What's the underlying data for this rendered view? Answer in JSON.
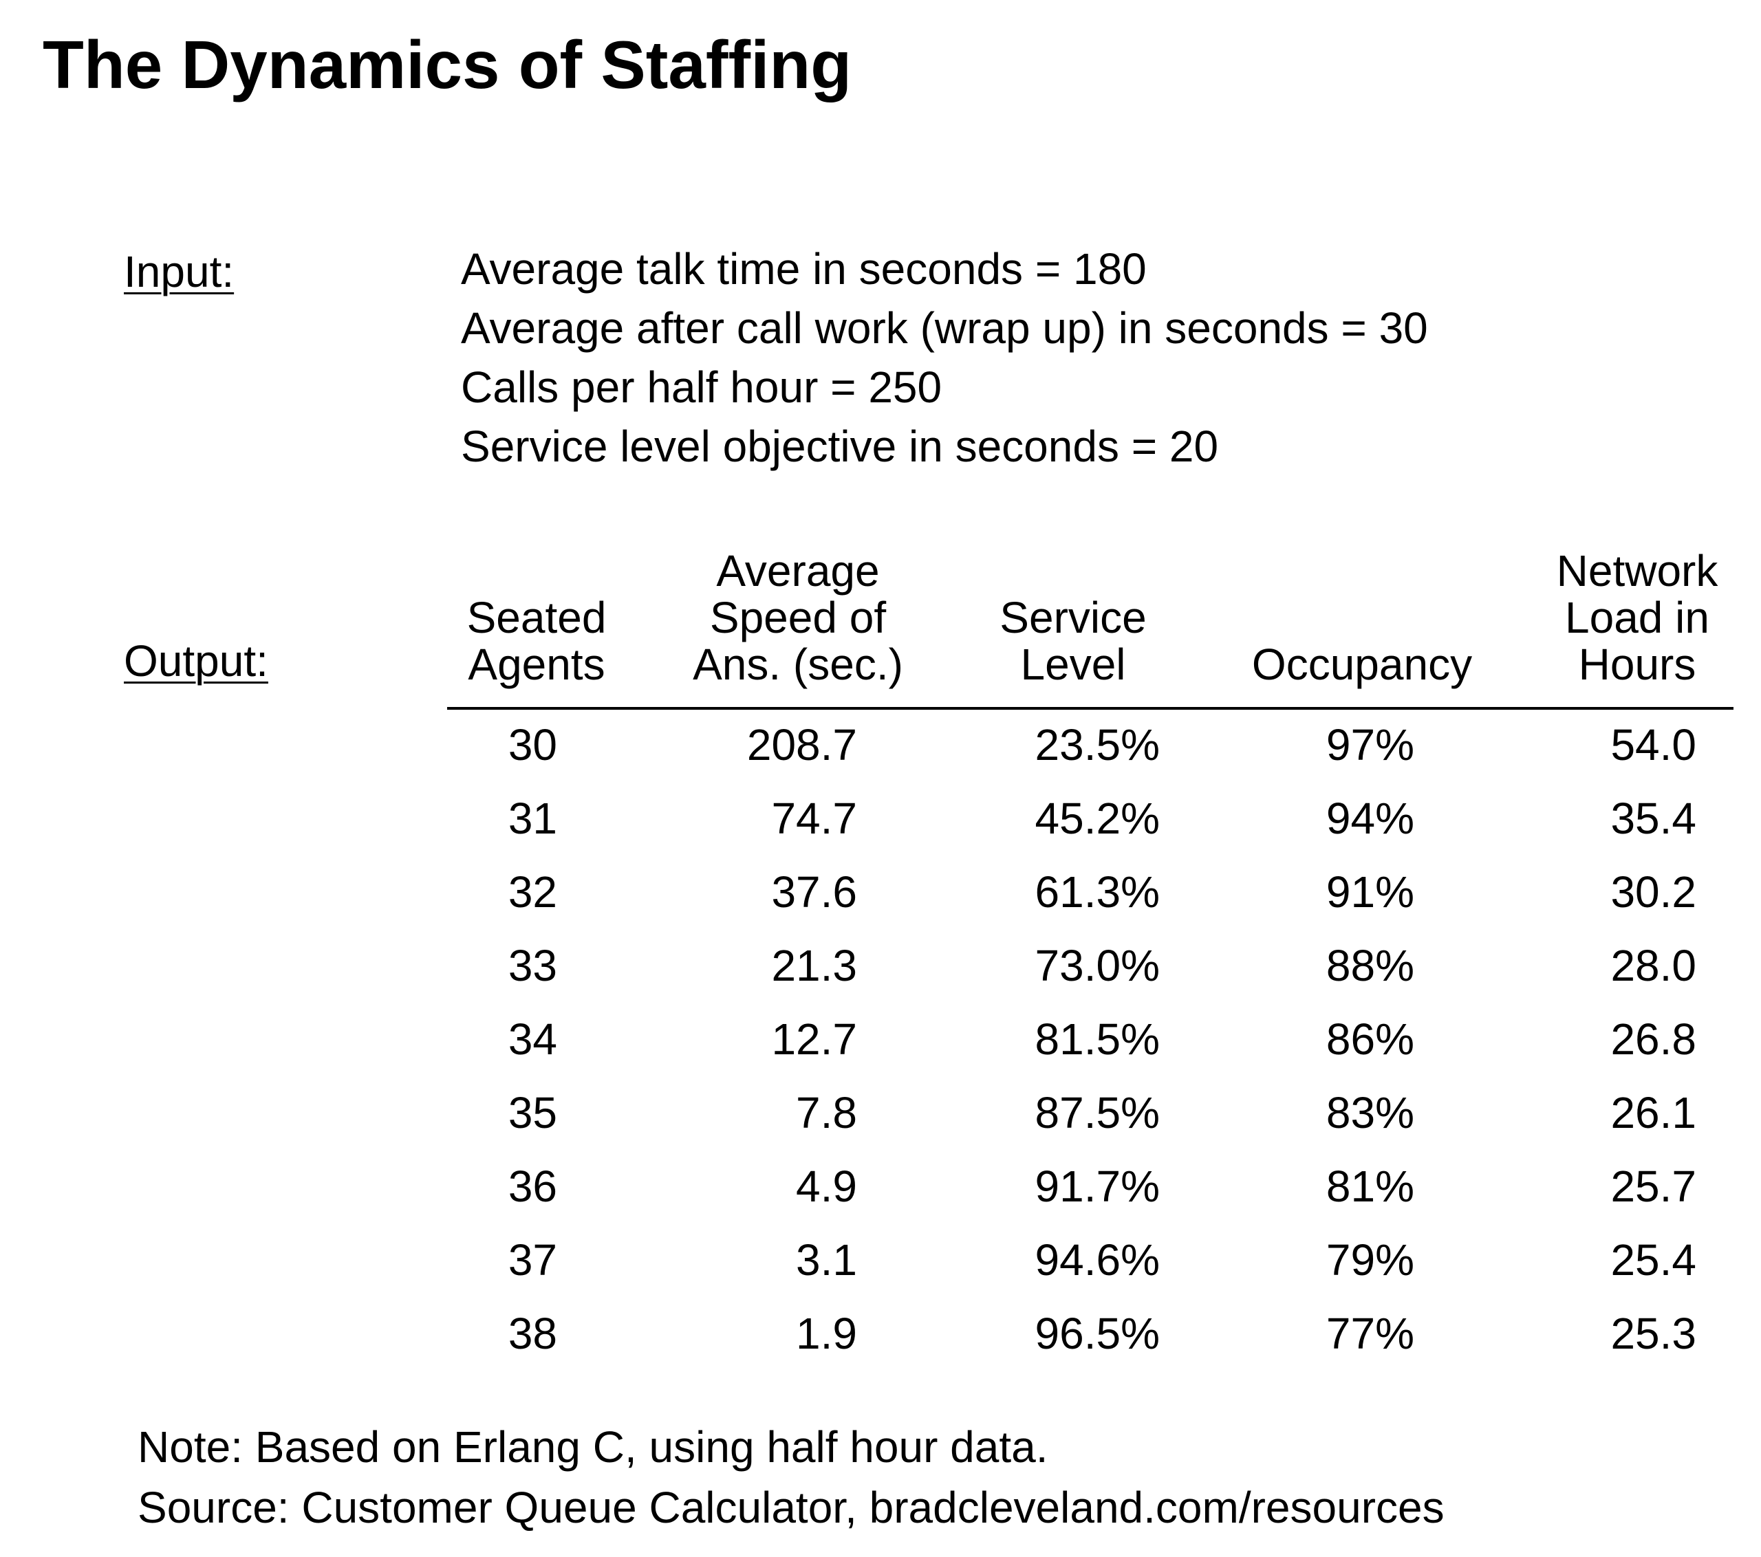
{
  "title": "The Dynamics of Staffing",
  "input": {
    "label": "Input:",
    "lines": [
      "Average talk time in seconds = 180",
      "Average after call work (wrap up) in seconds = 30",
      "Calls per half hour = 250",
      "Service level objective in seconds = 20"
    ]
  },
  "output": {
    "label": "Output:",
    "columns": [
      [
        "Seated",
        "Agents"
      ],
      [
        "Average",
        "Speed of",
        "Ans. (sec.)"
      ],
      [
        "Service",
        "Level"
      ],
      [
        "Occupancy"
      ],
      [
        "Network",
        "Load in",
        "Hours"
      ]
    ],
    "rows": [
      [
        "30",
        "208.7",
        "23.5%",
        "97%",
        "54.0"
      ],
      [
        "31",
        "74.7",
        "45.2%",
        "94%",
        "35.4"
      ],
      [
        "32",
        "37.6",
        "61.3%",
        "91%",
        "30.2"
      ],
      [
        "33",
        "21.3",
        "73.0%",
        "88%",
        "28.0"
      ],
      [
        "34",
        "12.7",
        "81.5%",
        "86%",
        "26.8"
      ],
      [
        "35",
        "7.8",
        "87.5%",
        "83%",
        "26.1"
      ],
      [
        "36",
        "4.9",
        "91.7%",
        "81%",
        "25.7"
      ],
      [
        "37",
        "3.1",
        "94.6%",
        "79%",
        "25.4"
      ],
      [
        "38",
        "1.9",
        "96.5%",
        "77%",
        "25.3"
      ]
    ]
  },
  "notes": [
    "Note: Based on Erlang C, using half hour data.",
    "Source: Customer Queue Calculator, bradcleveland.com/resources"
  ]
}
